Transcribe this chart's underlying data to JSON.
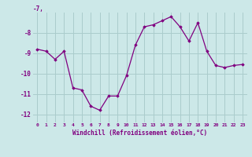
{
  "x": [
    0,
    1,
    2,
    3,
    4,
    5,
    6,
    7,
    8,
    9,
    10,
    11,
    12,
    13,
    14,
    15,
    16,
    17,
    18,
    19,
    20,
    21,
    22,
    23
  ],
  "y": [
    -8.8,
    -8.9,
    -9.3,
    -8.9,
    -10.7,
    -10.8,
    -11.6,
    -11.8,
    -11.1,
    -11.1,
    -10.1,
    -8.6,
    -7.7,
    -7.6,
    -7.4,
    -7.2,
    -7.7,
    -8.4,
    -7.5,
    -8.9,
    -9.6,
    -9.7,
    -9.6,
    -9.55
  ],
  "xlim": [
    -0.5,
    23.5
  ],
  "ylim": [
    -12.4,
    -7.0
  ],
  "yticks": [
    -12,
    -11,
    -10,
    -9,
    -8
  ],
  "ytick_labels": [
    "-12",
    "-11",
    "-10",
    "-9",
    "-8"
  ],
  "xticks": [
    0,
    1,
    2,
    3,
    4,
    5,
    6,
    7,
    8,
    9,
    10,
    11,
    12,
    13,
    14,
    15,
    16,
    17,
    18,
    19,
    20,
    21,
    22,
    23
  ],
  "xlabel": "Windchill (Refroidissement éolien,°C)",
  "line_color": "#800080",
  "marker": "D",
  "marker_size": 1.8,
  "bg_color": "#cce8e8",
  "grid_color": "#aacccc",
  "top_label": "-7,"
}
